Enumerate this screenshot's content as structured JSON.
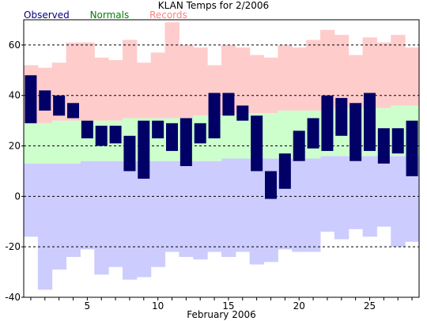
{
  "chart_data": {
    "type": "bar",
    "title": "KLAN Temps for 2/2006",
    "xlabel": "February 2006",
    "ylabel": "",
    "ylim": [
      -40,
      70
    ],
    "xlim": [
      0.5,
      28.5
    ],
    "yticks": [
      -40,
      -20,
      0,
      20,
      40,
      60
    ],
    "xticks": [
      5,
      10,
      15,
      20,
      25
    ],
    "grid": "dashed horizontal",
    "legend": "top-left",
    "colors": {
      "Observed": "#000066",
      "Normals": "#ccffcc",
      "Records": "#ffcccc",
      "record_low_band": "#ccccff",
      "observed_label": "#000080",
      "normals_label": "#008000",
      "records_label": "#ff8080"
    },
    "days": [
      1,
      2,
      3,
      4,
      5,
      6,
      7,
      8,
      9,
      10,
      11,
      12,
      13,
      14,
      15,
      16,
      17,
      18,
      19,
      20,
      21,
      22,
      23,
      24,
      25,
      26,
      27,
      28
    ],
    "series": [
      {
        "name": "Observed",
        "low": [
          29,
          34,
          32,
          31,
          23,
          20,
          21,
          10,
          7,
          23,
          18,
          12,
          21,
          23,
          32,
          30,
          10,
          -1,
          3,
          14,
          19,
          18,
          24,
          14,
          18,
          13,
          17,
          8
        ],
        "high": [
          48,
          42,
          40,
          37,
          30,
          28,
          28,
          24,
          30,
          30,
          29,
          31,
          29,
          41,
          41,
          36,
          32,
          10,
          17,
          26,
          31,
          40,
          39,
          37,
          41,
          27,
          27,
          30
        ]
      },
      {
        "name": "Normals",
        "low": [
          13,
          13,
          13,
          13,
          14,
          14,
          14,
          14,
          14,
          14,
          14,
          14,
          14,
          14,
          15,
          15,
          15,
          15,
          15,
          15,
          15,
          16,
          16,
          16,
          16,
          16,
          16,
          16
        ],
        "high": [
          29,
          29,
          30,
          30,
          30,
          30,
          30,
          31,
          31,
          31,
          31,
          31,
          32,
          32,
          32,
          33,
          33,
          33,
          34,
          34,
          34,
          34,
          35,
          35,
          35,
          35,
          36,
          36
        ]
      },
      {
        "name": "Records",
        "low": [
          -16,
          -37,
          -29,
          -24,
          -21,
          -31,
          -28,
          -33,
          -32,
          -28,
          -22,
          -24,
          -25,
          -22,
          -24,
          -22,
          -27,
          -26,
          -21,
          -22,
          -22,
          -14,
          -17,
          -13,
          -16,
          -12,
          -20,
          -18
        ],
        "high": [
          52,
          51,
          53,
          61,
          61,
          55,
          54,
          62,
          53,
          57,
          69,
          60,
          59,
          52,
          60,
          59,
          56,
          55,
          60,
          59,
          62,
          66,
          64,
          56,
          63,
          61,
          64,
          59
        ]
      }
    ]
  }
}
